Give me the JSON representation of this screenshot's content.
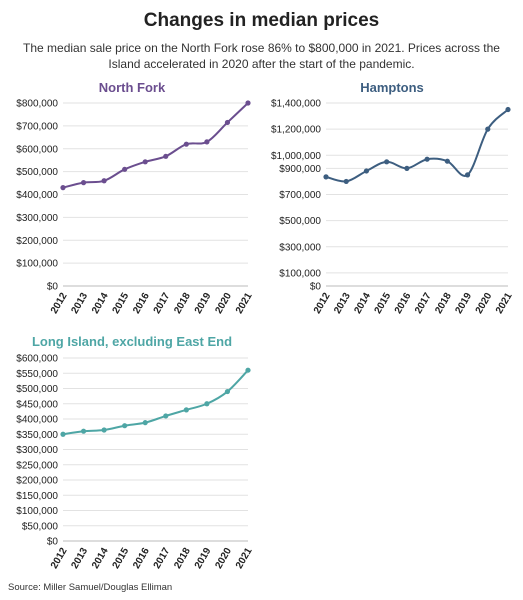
{
  "title": "Changes in median prices",
  "subtitle": "The median sale price on the North Fork rose 86% to $800,000 in 2021. Prices across the Island accelerated in 2020 after the start of the pandemic.",
  "source": "Source: Miller Samuel/Douglas Elliman",
  "chart_data": [
    {
      "type": "line",
      "title": "North Fork",
      "color": "#6b4e8f",
      "x": [
        2012,
        2013,
        2014,
        2015,
        2016,
        2017,
        2018,
        2019,
        2020,
        2021
      ],
      "values": [
        430000,
        452000,
        460000,
        510000,
        543000,
        567000,
        620000,
        630000,
        715000,
        800000
      ],
      "ylim": [
        0,
        800000
      ],
      "yticks": [
        0,
        100000,
        200000,
        300000,
        400000,
        500000,
        600000,
        700000,
        800000
      ],
      "ytick_labels": [
        "$0",
        "$100,000",
        "$200,000",
        "$300,000",
        "$400,000",
        "$500,000",
        "$600,000",
        "$700,000",
        "$800,000"
      ],
      "grid": true
    },
    {
      "type": "line",
      "title": "Hamptons",
      "color": "#3d5e80",
      "x": [
        2012,
        2013,
        2014,
        2015,
        2016,
        2017,
        2018,
        2019,
        2020,
        2021
      ],
      "values": [
        835000,
        800000,
        880000,
        950000,
        900000,
        970000,
        955000,
        850000,
        1200000,
        1350000
      ],
      "ylim": [
        0,
        1400000
      ],
      "yticks": [
        0,
        100000,
        300000,
        500000,
        700000,
        900000,
        1000000,
        1200000,
        1400000
      ],
      "ytick_labels": [
        "$0",
        "$100,000",
        "$300,000",
        "$500,000",
        "$700,000",
        "$900,000",
        "$1,000,000",
        "$1,200,000",
        "$1,400,000"
      ],
      "grid": true
    },
    {
      "type": "line",
      "title": "Long Island, excluding East End",
      "color": "#4ea6a5",
      "x": [
        2012,
        2013,
        2014,
        2015,
        2016,
        2017,
        2018,
        2019,
        2020,
        2021
      ],
      "values": [
        350000,
        360000,
        364000,
        378000,
        388000,
        410000,
        430000,
        450000,
        490000,
        560000
      ],
      "ylim": [
        0,
        600000
      ],
      "yticks": [
        0,
        50000,
        100000,
        150000,
        200000,
        250000,
        300000,
        350000,
        400000,
        450000,
        500000,
        550000,
        600000
      ],
      "ytick_labels": [
        "$0",
        "$50,000",
        "$100,000",
        "$150,000",
        "$200,000",
        "$250,000",
        "$300,000",
        "$350,000",
        "$400,000",
        "$450,000",
        "$500,000",
        "$550,000",
        "$600,000"
      ],
      "grid": true
    }
  ]
}
